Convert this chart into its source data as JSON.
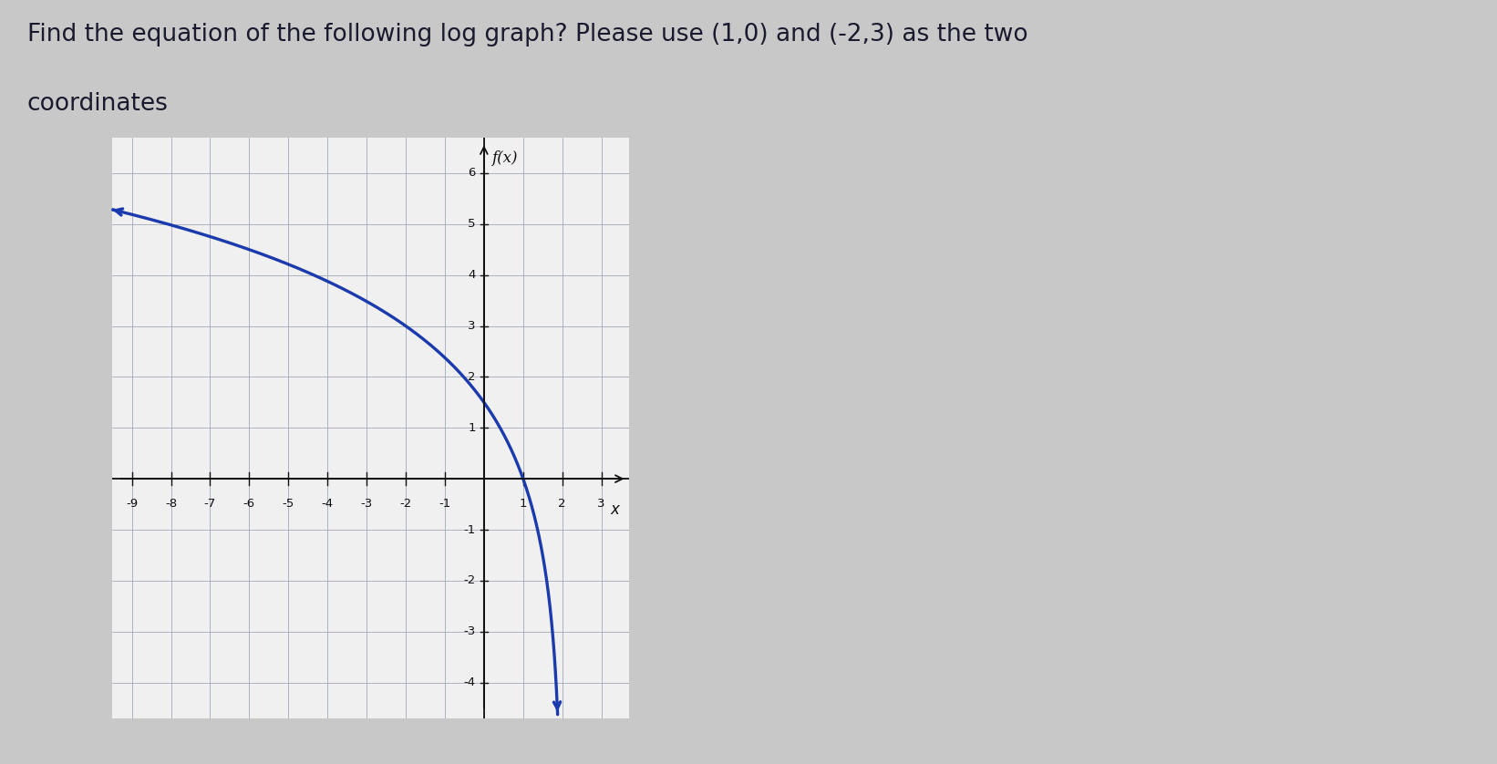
{
  "title_line1": "Find the equation of the following log graph? Please use (1,0) and (-2,3) as the two",
  "title_line2": "coordinates",
  "title_fontsize": 19,
  "title_color": "#1a1a2e",
  "graph_bg": "#f0f0f0",
  "outer_bg": "#c8c8c8",
  "curve_color": "#1a3aad",
  "curve_linewidth": 2.4,
  "x_min": -9.5,
  "x_max": 3.7,
  "y_min": -4.7,
  "y_max": 6.7,
  "x_ticks": [
    -9,
    -8,
    -7,
    -6,
    -5,
    -4,
    -3,
    -2,
    -1,
    1,
    2,
    3
  ],
  "y_ticks": [
    -4,
    -3,
    -2,
    -1,
    1,
    2,
    3,
    4,
    5,
    6
  ],
  "grid_color": "#a0a8b8",
  "axis_color": "#111111",
  "tick_label_fontsize": 9.5,
  "ylabel_text": "f(x)",
  "xlabel_text": "x",
  "b": 2.0
}
